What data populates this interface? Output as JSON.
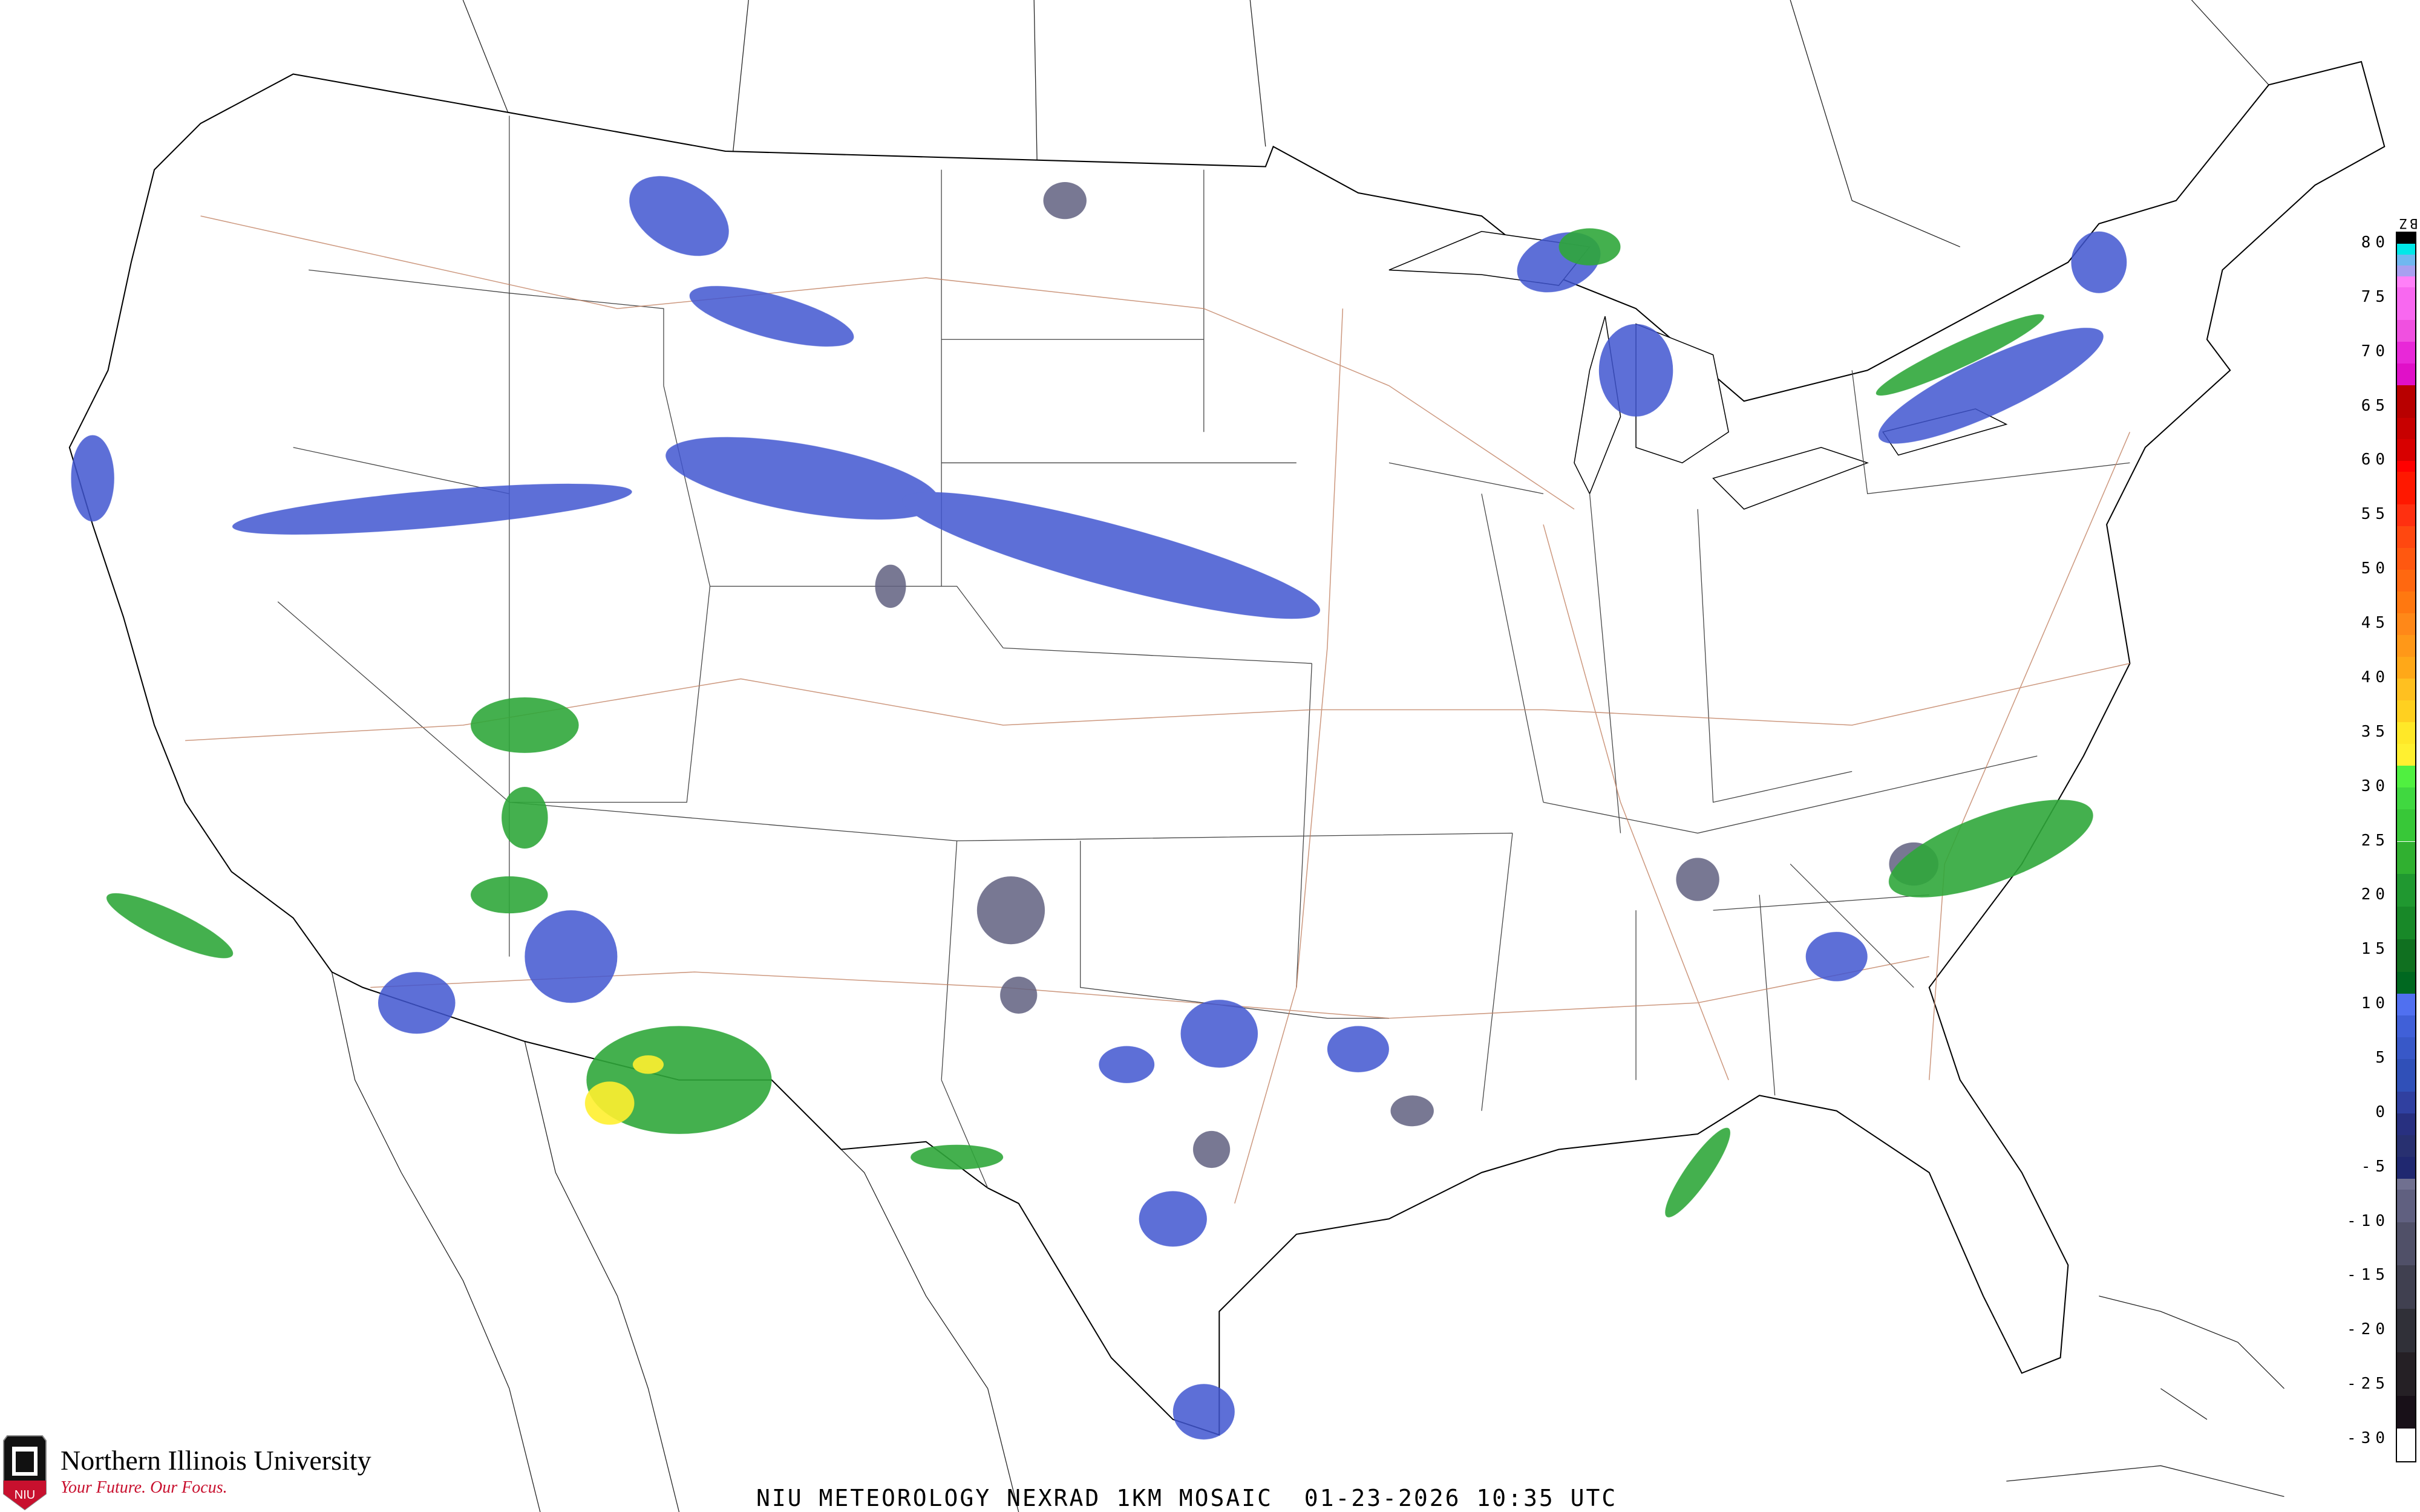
{
  "caption": "NIU METEOROLOGY NEXRAD 1KM MOSAIC  01-23-2026 10:35 UTC",
  "logo": {
    "name": "Northern Illinois University",
    "tagline": "Your Future. Our Focus.",
    "mark": "NIU",
    "accent": "#c8102e"
  },
  "legend": {
    "unit": "dBZ",
    "range": [
      -32,
      81
    ],
    "ticks": [
      "80",
      "75",
      "70",
      "65",
      "60",
      "55",
      "50",
      "45",
      "40",
      "35",
      "30",
      "25",
      "20",
      "15",
      "10",
      "5",
      "0",
      "-5",
      "-10",
      "-15",
      "-20",
      "-25",
      "-30"
    ],
    "colorscale": [
      [
        80,
        "#000000"
      ],
      [
        79,
        "#00e8e8"
      ],
      [
        78,
        "#70b8f0"
      ],
      [
        77,
        "#a8a0f0"
      ],
      [
        76,
        "#ff80f8"
      ],
      [
        73,
        "#f868f0"
      ],
      [
        71,
        "#f050e0"
      ],
      [
        69,
        "#e828d8"
      ],
      [
        67,
        "#e010c8"
      ],
      [
        64,
        "#b80000"
      ],
      [
        62,
        "#c80000"
      ],
      [
        60,
        "#d80000"
      ],
      [
        59,
        "#ff0000"
      ],
      [
        56,
        "#ff1800"
      ],
      [
        54,
        "#ff3010"
      ],
      [
        52,
        "#ff4810"
      ],
      [
        50,
        "#ff5810"
      ],
      [
        48,
        "#ff6810"
      ],
      [
        46,
        "#ff7810"
      ],
      [
        44,
        "#ff8818"
      ],
      [
        42,
        "#ff9818"
      ],
      [
        40,
        "#ffa818"
      ],
      [
        38,
        "#ffc020"
      ],
      [
        36,
        "#ffd020"
      ],
      [
        34,
        "#ffe828"
      ],
      [
        32,
        "#fff030"
      ],
      [
        30,
        "#50f040"
      ],
      [
        28,
        "#40d840"
      ],
      [
        25,
        "#38c838"
      ],
      [
        22,
        "#30b030"
      ],
      [
        19,
        "#209830"
      ],
      [
        16,
        "#188828"
      ],
      [
        13,
        "#107020"
      ],
      [
        11,
        "#006820"
      ],
      [
        9,
        "#5070f0"
      ],
      [
        7,
        "#4060d8"
      ],
      [
        5,
        "#3858c8"
      ],
      [
        2,
        "#3050b8"
      ],
      [
        0,
        "#3040a0"
      ],
      [
        -2,
        "#283080"
      ],
      [
        -4,
        "#283070"
      ],
      [
        -6,
        "#202870"
      ],
      [
        -7,
        "#707090"
      ],
      [
        -10,
        "#606080"
      ],
      [
        -14,
        "#505068"
      ],
      [
        -18,
        "#404050"
      ],
      [
        -22,
        "#303038"
      ],
      [
        -26,
        "#252025"
      ],
      [
        -29,
        "#181018"
      ],
      [
        -31,
        "#ffffff"
      ]
    ]
  },
  "map": {
    "colors": {
      "coast": "#000000",
      "state": "#333333",
      "county": "#cccccc",
      "highway": "#c08060"
    }
  }
}
